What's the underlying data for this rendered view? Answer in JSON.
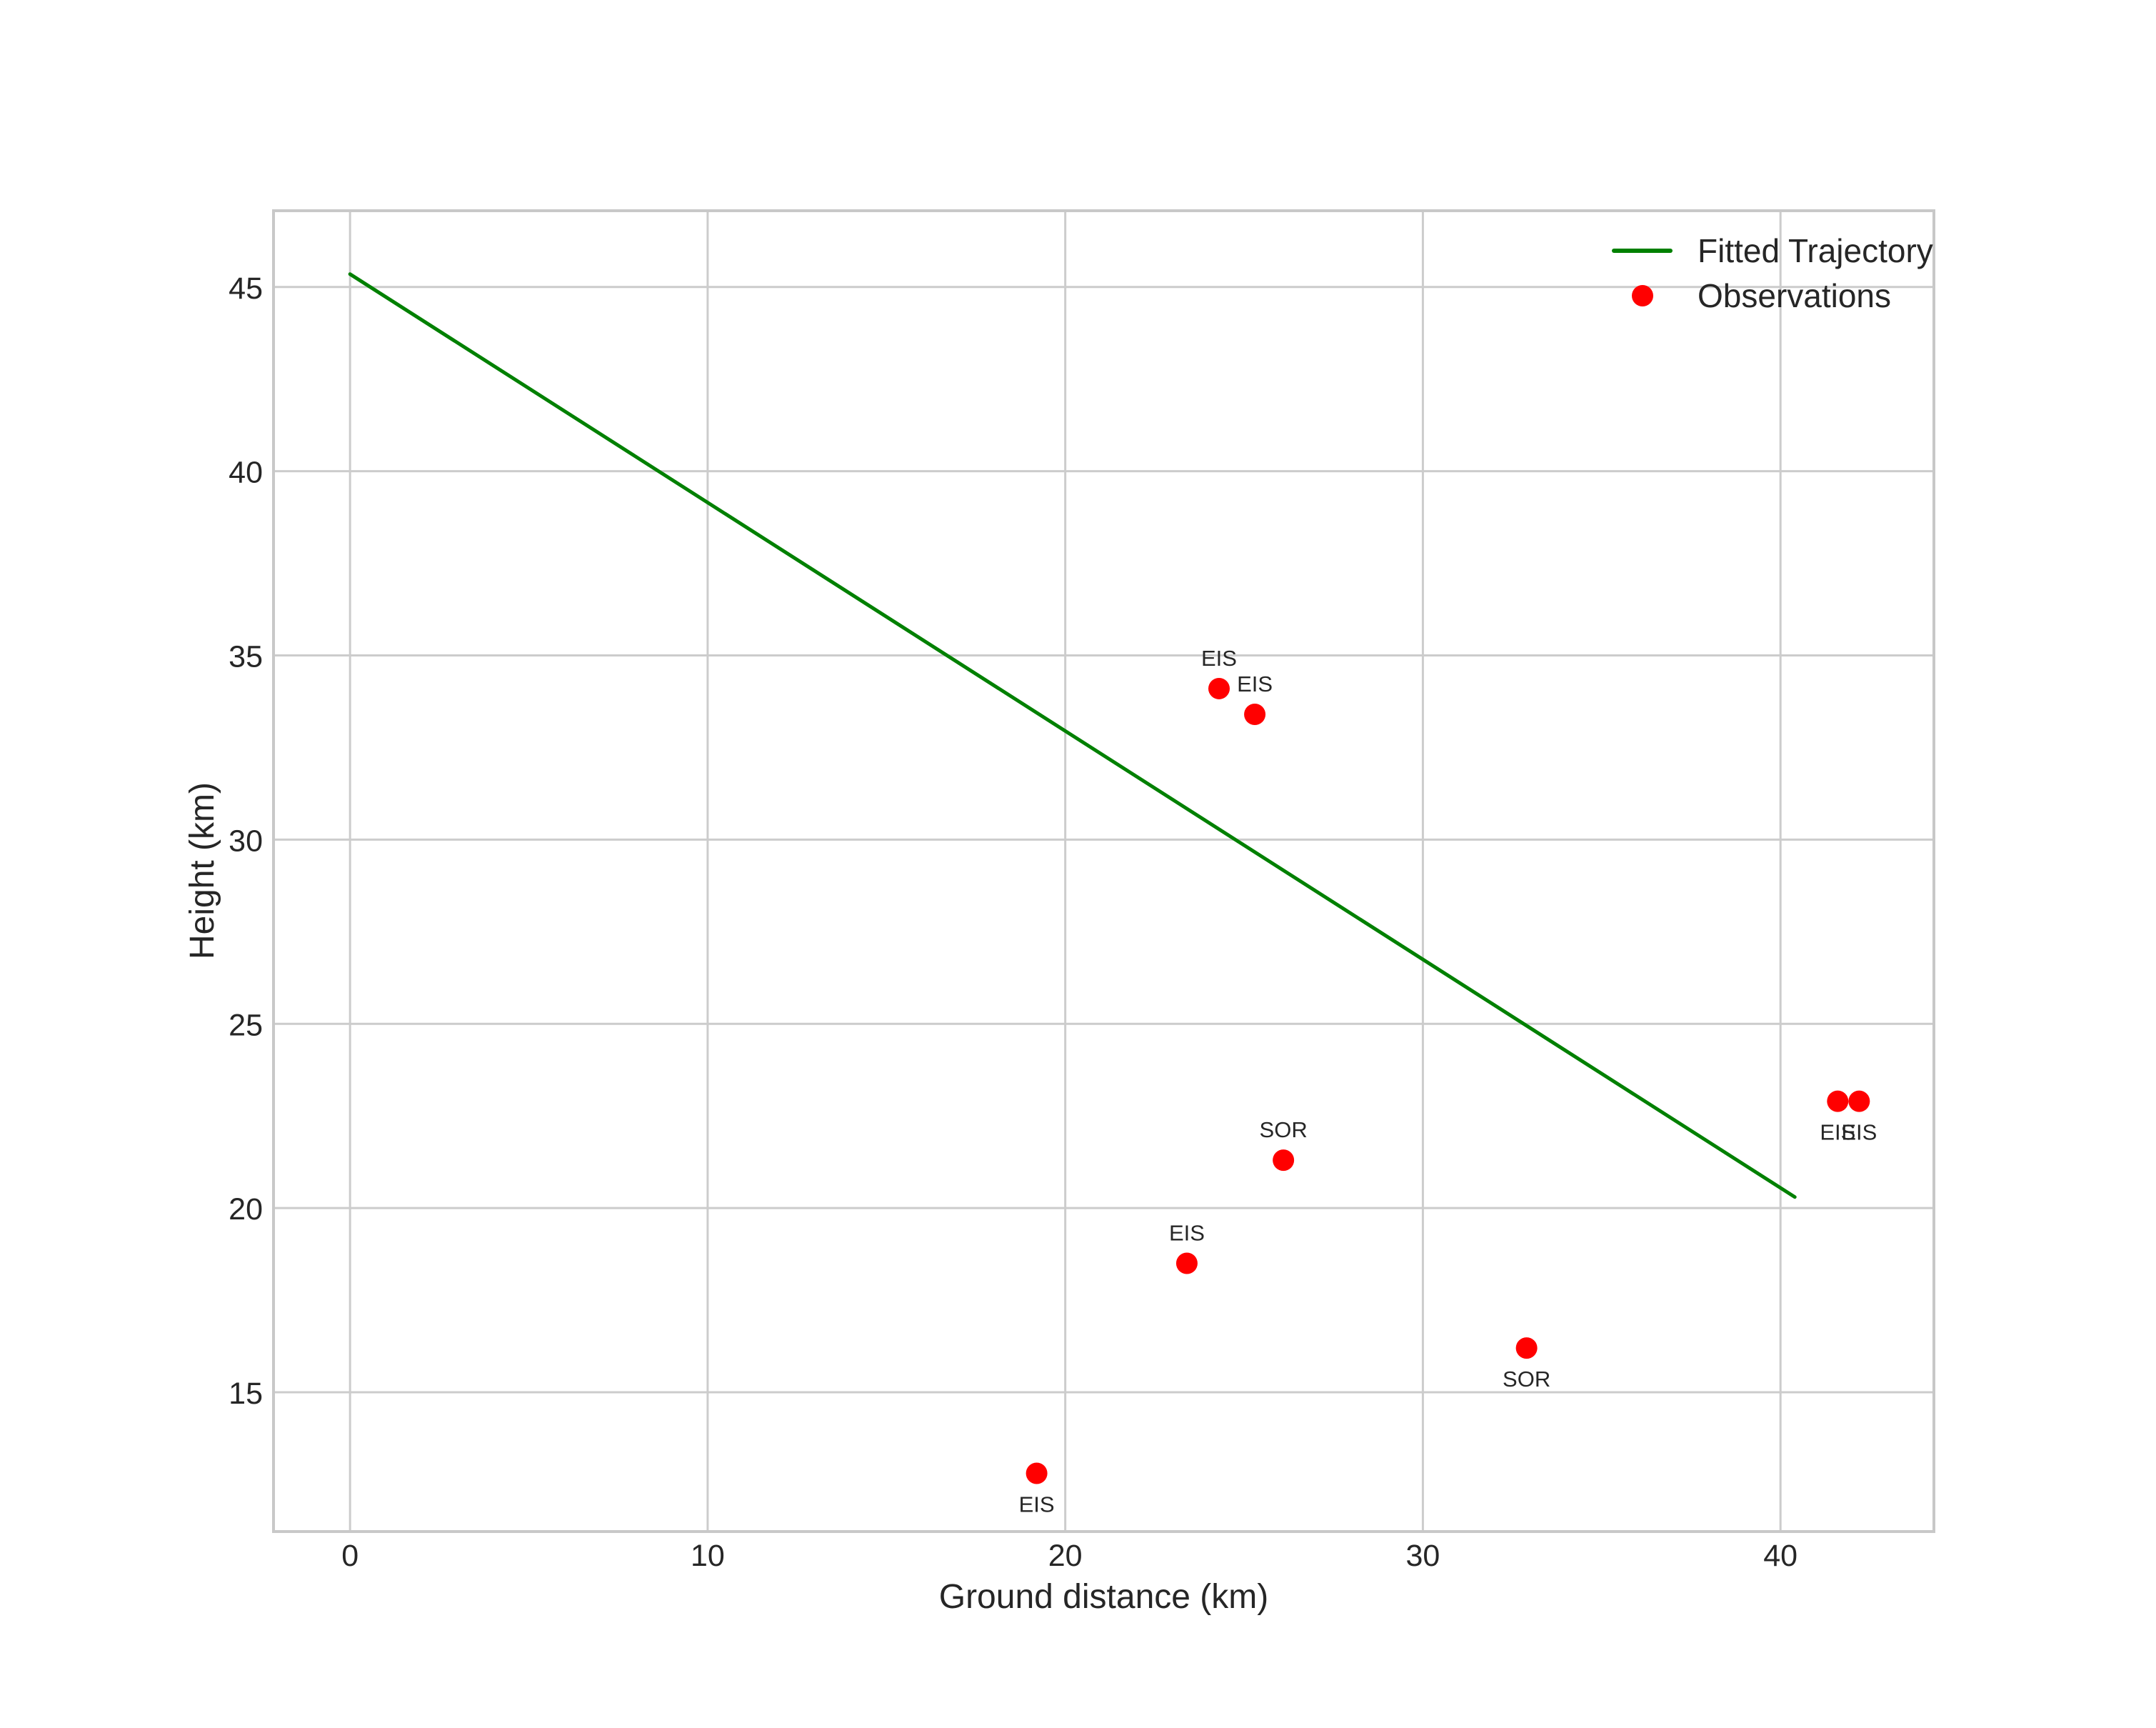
{
  "figure": {
    "background": "#ffffff",
    "text_color": "#262626",
    "grid_color": "#cccccc",
    "spine_color": "#c8c8c8",
    "accent_green": "#008000",
    "accent_red": "#ff0000"
  },
  "chart_data": {
    "type": "scatter",
    "title": "",
    "xlabel": "Ground distance (km)",
    "ylabel": "Height (km)",
    "xlim": [
      -2.14,
      44.29
    ],
    "ylim": [
      11.22,
      47.07
    ],
    "x_ticks": [
      0,
      10,
      20,
      30,
      40
    ],
    "y_ticks": [
      15,
      20,
      25,
      30,
      35,
      40,
      45
    ],
    "grid": true,
    "legend": {
      "position": "upper right",
      "frame": false,
      "entries": [
        {
          "label": "Fitted Trajectory",
          "marker": "line",
          "color": "#008000"
        },
        {
          "label": "Observations",
          "marker": "point",
          "color": "#ff0000"
        }
      ]
    },
    "series": [
      {
        "name": "Fitted Trajectory",
        "type": "line",
        "color": "#008000",
        "line_width": 5,
        "points": [
          [
            0.0,
            45.35
          ],
          [
            40.4,
            20.3
          ]
        ]
      },
      {
        "name": "Observations",
        "type": "scatter",
        "color": "#ff0000",
        "marker_radius": 15,
        "points": [
          {
            "x": 24.3,
            "y": 34.1,
            "label": "EIS",
            "label_side": "above"
          },
          {
            "x": 25.3,
            "y": 33.4,
            "label": "EIS",
            "label_side": "above"
          },
          {
            "x": 26.1,
            "y": 21.3,
            "label": "SOR",
            "label_side": "above"
          },
          {
            "x": 23.4,
            "y": 18.5,
            "label": "EIS",
            "label_side": "above"
          },
          {
            "x": 32.9,
            "y": 16.2,
            "label": "SOR",
            "label_side": "below"
          },
          {
            "x": 19.2,
            "y": 12.8,
            "label": "EIS",
            "label_side": "below"
          },
          {
            "x": 41.6,
            "y": 22.9,
            "label": "EIS",
            "label_side": "below"
          },
          {
            "x": 42.2,
            "y": 22.9,
            "label": "EIS",
            "label_side": "below"
          }
        ]
      }
    ]
  }
}
